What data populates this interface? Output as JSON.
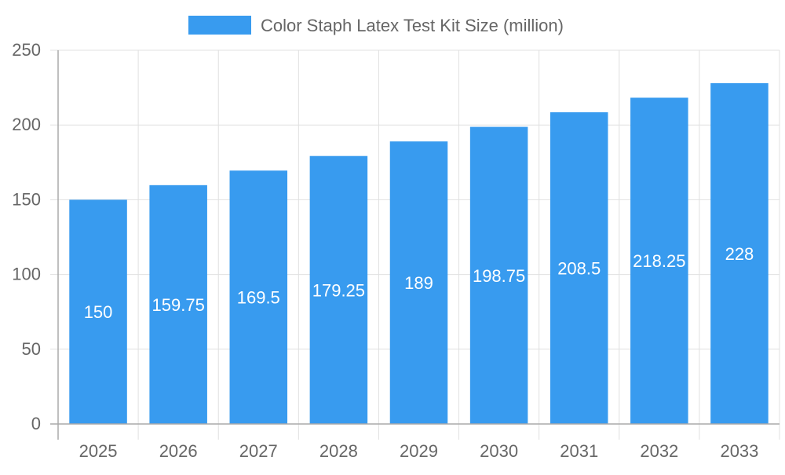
{
  "chart_data": {
    "type": "bar",
    "title": "",
    "legend": {
      "position": "top",
      "entries": [
        "Color Staph Latex Test Kit Size (million)"
      ]
    },
    "categories": [
      "2025",
      "2026",
      "2027",
      "2028",
      "2029",
      "2030",
      "2031",
      "2032",
      "2033"
    ],
    "series": [
      {
        "name": "Color Staph Latex Test Kit Size (million)",
        "values": [
          150,
          159.75,
          169.5,
          179.25,
          189,
          198.75,
          208.5,
          218.25,
          228
        ],
        "color": "#389bef"
      }
    ],
    "data_labels": [
      "150",
      "159.75",
      "169.5",
      "179.25",
      "189",
      "198.75",
      "208.5",
      "218.25",
      "228"
    ],
    "ylim": [
      0,
      250
    ],
    "yticks": [
      0,
      50,
      100,
      150,
      200,
      250
    ],
    "grid": true,
    "xlabel": "",
    "ylabel": ""
  }
}
